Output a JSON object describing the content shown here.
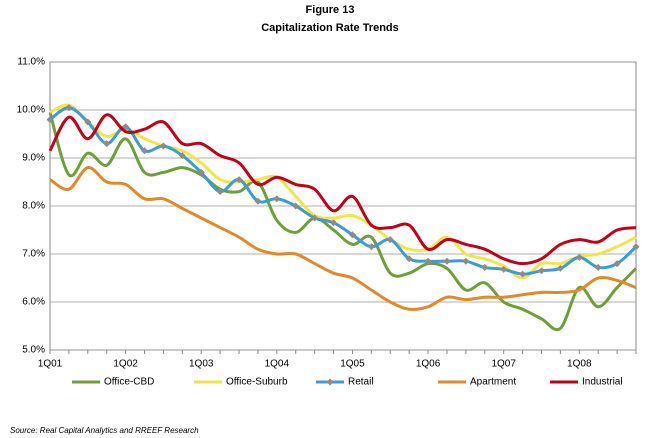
{
  "chart_data": {
    "type": "line",
    "title": "Figure 13",
    "subtitle": "Capitalization Rate Trends",
    "categories": [
      "1Q01",
      null,
      null,
      null,
      "1Q02",
      null,
      null,
      null,
      "1Q03",
      null,
      null,
      null,
      "1Q04",
      null,
      null,
      null,
      "1Q05",
      null,
      null,
      null,
      "1Q06",
      null,
      null,
      null,
      "1Q07",
      null,
      null,
      null,
      "1Q08",
      null,
      null,
      null
    ],
    "series": [
      {
        "name": "Office-CBD",
        "color": "#6f9f3a",
        "values": [
          9.95,
          8.65,
          9.1,
          8.85,
          9.4,
          8.7,
          8.7,
          8.8,
          8.65,
          8.35,
          8.3,
          8.5,
          7.7,
          7.45,
          7.75,
          7.5,
          7.2,
          7.35,
          6.6,
          6.6,
          6.8,
          6.7,
          6.25,
          6.4,
          6.0,
          5.85,
          5.65,
          5.45,
          6.3,
          5.9,
          6.3,
          6.7
        ]
      },
      {
        "name": "Office-Suburb",
        "color": "#f2e54a",
        "values": [
          9.95,
          10.1,
          9.75,
          9.45,
          9.6,
          9.4,
          9.25,
          9.15,
          8.9,
          8.55,
          8.5,
          8.55,
          8.6,
          8.2,
          7.8,
          7.75,
          7.8,
          7.6,
          7.3,
          7.1,
          7.1,
          7.35,
          7.0,
          6.9,
          6.75,
          6.5,
          6.8,
          6.8,
          6.95,
          7.0,
          7.15,
          7.35
        ]
      },
      {
        "name": "Retail",
        "color": "#3d9bd6",
        "marker_color": "#8c8c8c",
        "values": [
          9.8,
          10.05,
          9.75,
          9.3,
          9.65,
          9.15,
          9.25,
          9.05,
          8.7,
          8.3,
          8.55,
          8.1,
          8.15,
          8.0,
          7.75,
          7.65,
          7.4,
          7.15,
          7.3,
          6.9,
          6.85,
          6.85,
          6.85,
          6.72,
          6.68,
          6.58,
          6.65,
          6.7,
          6.93,
          6.72,
          6.8,
          7.15
        ]
      },
      {
        "name": "Apartment",
        "color": "#e08a2c",
        "values": [
          8.55,
          8.35,
          8.8,
          8.5,
          8.45,
          8.15,
          8.15,
          7.95,
          7.75,
          7.55,
          7.35,
          7.1,
          7.0,
          7.0,
          6.8,
          6.6,
          6.5,
          6.25,
          6.0,
          5.85,
          5.9,
          6.1,
          6.05,
          6.1,
          6.1,
          6.15,
          6.2,
          6.2,
          6.25,
          6.5,
          6.45,
          6.3
        ]
      },
      {
        "name": "Industrial",
        "color": "#c00018",
        "values": [
          9.15,
          9.85,
          9.4,
          9.9,
          9.55,
          9.6,
          9.75,
          9.3,
          9.3,
          9.05,
          8.9,
          8.45,
          8.6,
          8.45,
          8.35,
          7.9,
          8.2,
          7.6,
          7.55,
          7.6,
          7.1,
          7.3,
          7.2,
          7.1,
          6.9,
          6.8,
          6.9,
          7.2,
          7.3,
          7.25,
          7.5,
          7.55
        ]
      }
    ],
    "ylim": [
      5,
      11
    ],
    "yticks": [
      {
        "value": 5,
        "label": "5.0%"
      },
      {
        "value": 6,
        "label": "6.0%"
      },
      {
        "value": 7,
        "label": "7.0%"
      },
      {
        "value": 8,
        "label": "8.0%"
      },
      {
        "value": 9,
        "label": "9.0%"
      },
      {
        "value": 10,
        "label": "10.0%"
      },
      {
        "value": 11,
        "label": "11.0%"
      }
    ],
    "grid": true,
    "legend": "bottom",
    "source": "Source: Real Capital Analytics and RREEF Research"
  }
}
